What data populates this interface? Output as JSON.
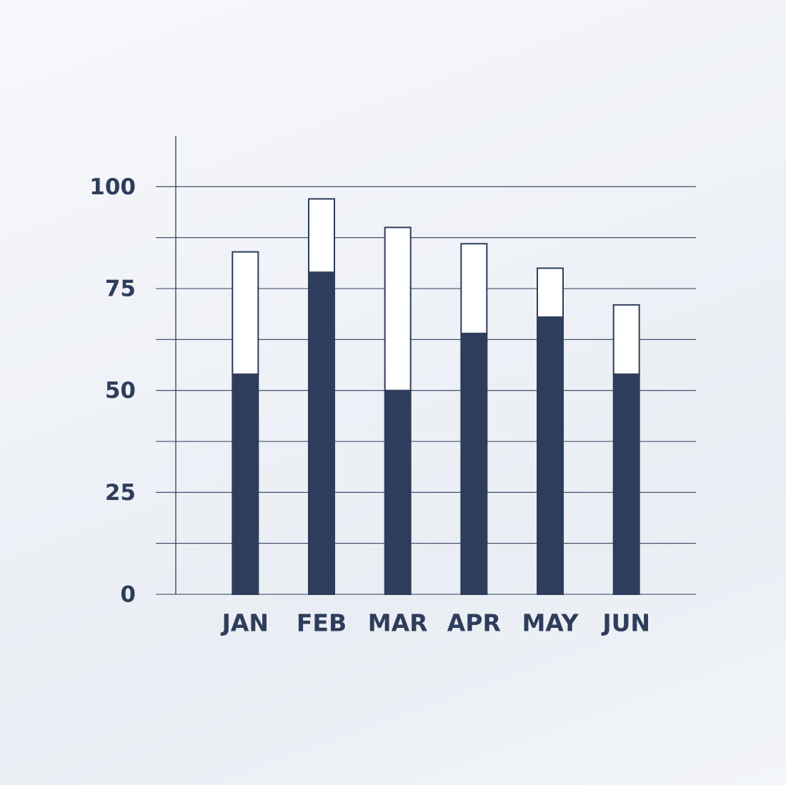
{
  "chart_data": {
    "type": "stacked_bar",
    "categories": [
      "JAN",
      "FEB",
      "MAR",
      "APR",
      "MAY",
      "JUN"
    ],
    "series": [
      {
        "color": "#2f3d5c",
        "values": [
          54,
          79,
          50,
          64,
          68,
          54
        ]
      },
      {
        "color": "#ffffff",
        "values": [
          30,
          18,
          40,
          22,
          12,
          17
        ]
      }
    ],
    "ylim": [
      0,
      112.5
    ],
    "yticks": [
      0,
      25,
      50,
      75,
      100
    ],
    "minor_yticks": [
      12.5,
      37.5,
      62.5,
      87.5
    ],
    "grid": true
  }
}
